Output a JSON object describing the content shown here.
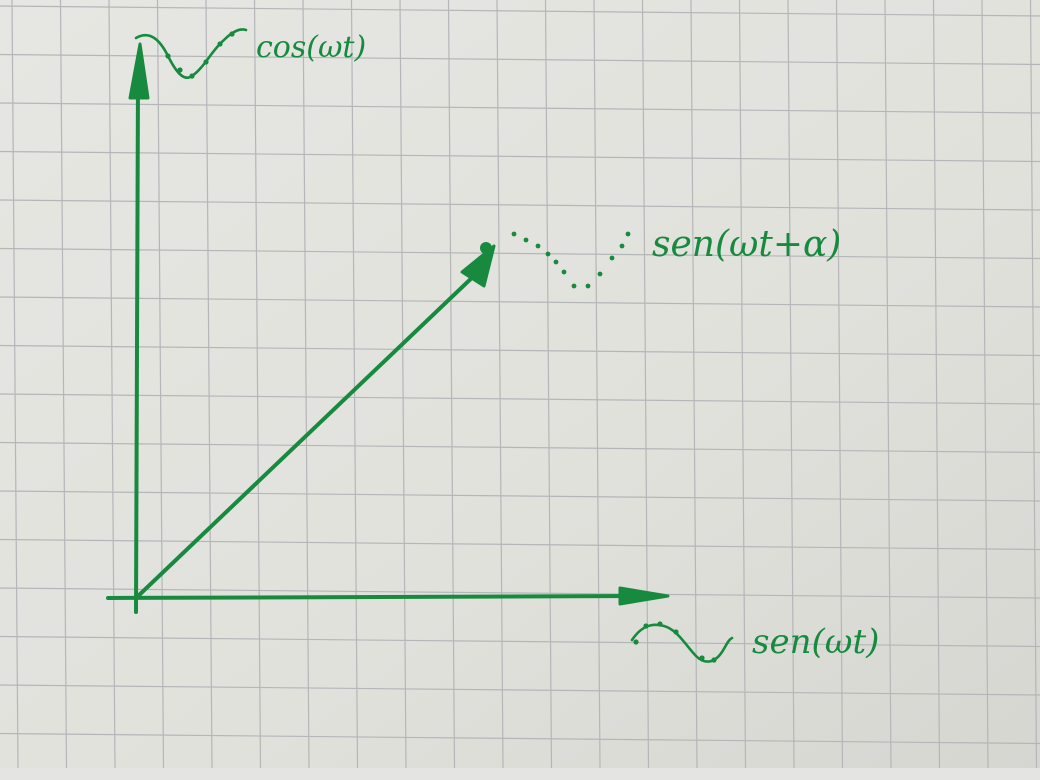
{
  "colors": {
    "ink": "#178a3f",
    "paper": "#e3e3df",
    "grid": "#b4b6b8"
  },
  "labels": {
    "y_axis": "cos(ωt)",
    "x_axis": "sen(ωt)",
    "vector": "sen(ωt+α)"
  }
}
